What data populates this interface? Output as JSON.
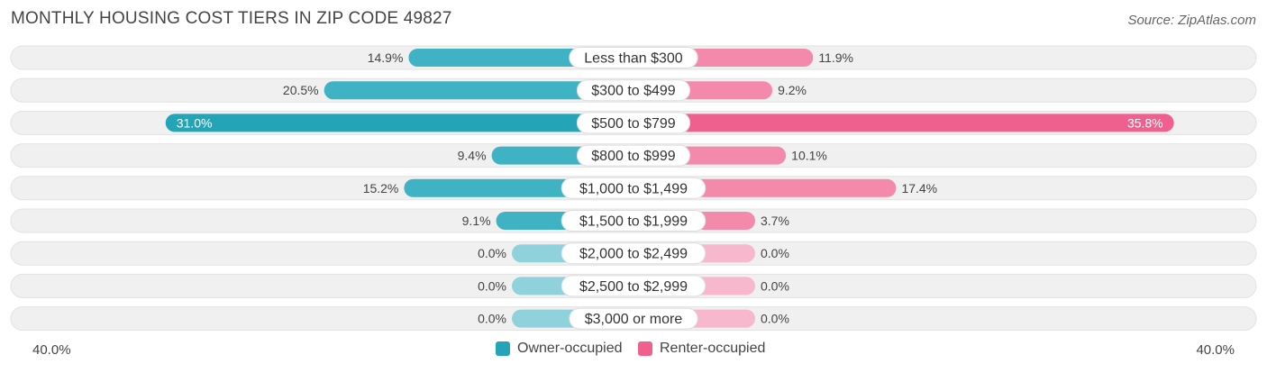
{
  "header": {
    "title": "MONTHLY HOUSING COST TIERS IN ZIP CODE 49827",
    "source": "Source: ZipAtlas.com"
  },
  "colors": {
    "owner": "#3fb3c4",
    "owner_highlight": "#23a5b7",
    "owner_empty": "#8fd2dc",
    "renter": "#f48aab",
    "renter_highlight": "#f0608e",
    "renter_empty": "#f7b8cd",
    "track": "#f0f0f0"
  },
  "chart_data": {
    "type": "bar",
    "orientation": "diverging-horizontal",
    "categories": [
      "Less than $300",
      "$300 to $499",
      "$500 to $799",
      "$800 to $999",
      "$1,000 to $1,499",
      "$1,500 to $1,999",
      "$2,000 to $2,499",
      "$2,500 to $2,999",
      "$3,000 or more"
    ],
    "series": [
      {
        "name": "Owner-occupied",
        "side": "left",
        "values": [
          14.9,
          20.5,
          31.0,
          9.4,
          15.2,
          9.1,
          0.0,
          0.0,
          0.0
        ],
        "labels": [
          "14.9%",
          "20.5%",
          "31.0%",
          "9.4%",
          "15.2%",
          "9.1%",
          "0.0%",
          "0.0%",
          "0.0%"
        ]
      },
      {
        "name": "Renter-occupied",
        "side": "right",
        "values": [
          11.9,
          9.2,
          35.8,
          10.1,
          17.4,
          3.7,
          0.0,
          0.0,
          0.0
        ],
        "labels": [
          "11.9%",
          "9.2%",
          "35.8%",
          "10.1%",
          "17.4%",
          "3.7%",
          "0.0%",
          "0.0%",
          "0.0%"
        ]
      }
    ],
    "highlight_index": 2,
    "xlim": [
      -40,
      40
    ],
    "axis_left_label": "40.0%",
    "axis_right_label": "40.0%",
    "legend_position": "bottom-center"
  }
}
